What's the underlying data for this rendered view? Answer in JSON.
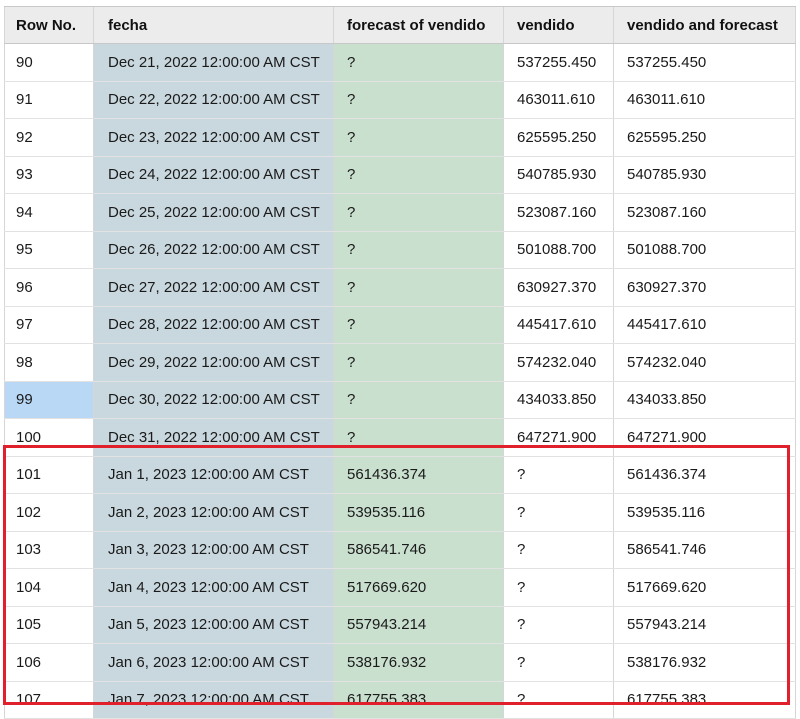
{
  "table": {
    "columns": [
      "Row No.",
      "fecha",
      "forecast of vendido",
      "vendido",
      "vendido and forecast"
    ],
    "selected_row": "99",
    "rows": [
      [
        "90",
        "Dec 21, 2022 12:00:00 AM CST",
        "?",
        "537255.450",
        "537255.450"
      ],
      [
        "91",
        "Dec 22, 2022 12:00:00 AM CST",
        "?",
        "463011.610",
        "463011.610"
      ],
      [
        "92",
        "Dec 23, 2022 12:00:00 AM CST",
        "?",
        "625595.250",
        "625595.250"
      ],
      [
        "93",
        "Dec 24, 2022 12:00:00 AM CST",
        "?",
        "540785.930",
        "540785.930"
      ],
      [
        "94",
        "Dec 25, 2022 12:00:00 AM CST",
        "?",
        "523087.160",
        "523087.160"
      ],
      [
        "95",
        "Dec 26, 2022 12:00:00 AM CST",
        "?",
        "501088.700",
        "501088.700"
      ],
      [
        "96",
        "Dec 27, 2022 12:00:00 AM CST",
        "?",
        "630927.370",
        "630927.370"
      ],
      [
        "97",
        "Dec 28, 2022 12:00:00 AM CST",
        "?",
        "445417.610",
        "445417.610"
      ],
      [
        "98",
        "Dec 29, 2022 12:00:00 AM CST",
        "?",
        "574232.040",
        "574232.040"
      ],
      [
        "99",
        "Dec 30, 2022 12:00:00 AM CST",
        "?",
        "434033.850",
        "434033.850"
      ],
      [
        "100",
        "Dec 31, 2022 12:00:00 AM CST",
        "?",
        "647271.900",
        "647271.900"
      ],
      [
        "101",
        "Jan 1, 2023 12:00:00 AM CST",
        "561436.374",
        "?",
        "561436.374"
      ],
      [
        "102",
        "Jan 2, 2023 12:00:00 AM CST",
        "539535.116",
        "?",
        "539535.116"
      ],
      [
        "103",
        "Jan 3, 2023 12:00:00 AM CST",
        "586541.746",
        "?",
        "586541.746"
      ],
      [
        "104",
        "Jan 4, 2023 12:00:00 AM CST",
        "517669.620",
        "?",
        "517669.620"
      ],
      [
        "105",
        "Jan 5, 2023 12:00:00 AM CST",
        "557943.214",
        "?",
        "557943.214"
      ],
      [
        "106",
        "Jan 6, 2023 12:00:00 AM CST",
        "538176.932",
        "?",
        "538176.932"
      ],
      [
        "107",
        "Jan 7, 2023 12:00:00 AM CST",
        "617755.383",
        "?",
        "617755.383"
      ]
    ]
  },
  "colors": {
    "date_column_bg": "#c9d8df",
    "forecast_column_bg": "#cae0cf",
    "selected_cell_bg": "#b9d8f6",
    "highlight_border": "#e0212b"
  }
}
